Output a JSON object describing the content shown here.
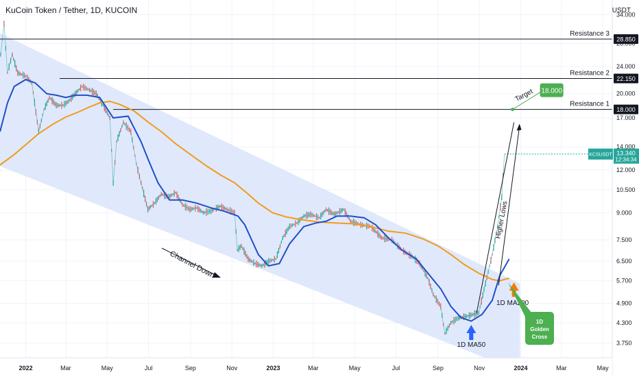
{
  "header": {
    "title": "KuCoin Token / Tether, 1D, KUCOIN",
    "currency": "USDT"
  },
  "colors": {
    "channel": "#dbe4fb",
    "ma50": "#1e4fc8",
    "ma200": "#f09c19",
    "candle_up": "#26a69a",
    "candle_down": "#ef5350",
    "target": "#4caf50",
    "hline": "#131722",
    "grid": "#f0f3fa"
  },
  "chart_data": {
    "type": "line",
    "title": "KuCoin Token / Tether, 1D, KUCOIN",
    "y_scale": "log",
    "ylim": [
      3.4,
      37.5
    ],
    "xlim": [
      "2021-11-24",
      "2024-05-15"
    ],
    "y_ticks": [
      "34.000",
      "28.000",
      "24.000",
      "20.000",
      "17.000",
      "14.000",
      "12.000",
      "10.500",
      "9.000",
      "7.500",
      "6.500",
      "5.700",
      "4.900",
      "4.300",
      "3.750"
    ],
    "x_ticks": [
      {
        "label": "2022",
        "date": "2022-01-01",
        "bold": true
      },
      {
        "label": "Mar",
        "date": "2022-03-01"
      },
      {
        "label": "May",
        "date": "2022-05-01"
      },
      {
        "label": "Jul",
        "date": "2022-07-01"
      },
      {
        "label": "Sep",
        "date": "2022-09-01"
      },
      {
        "label": "Nov",
        "date": "2022-11-01"
      },
      {
        "label": "2023",
        "date": "2023-01-01",
        "bold": true
      },
      {
        "label": "Mar",
        "date": "2023-03-01"
      },
      {
        "label": "May",
        "date": "2023-05-01"
      },
      {
        "label": "Jul",
        "date": "2023-07-01"
      },
      {
        "label": "Sep",
        "date": "2023-09-01"
      },
      {
        "label": "Nov",
        "date": "2023-11-01"
      },
      {
        "label": "2024",
        "date": "2024-01-01",
        "bold": true
      },
      {
        "label": "Mar",
        "date": "2024-03-01"
      },
      {
        "label": "May",
        "date": "2024-05-01"
      }
    ],
    "series": [
      {
        "name": "1D MA50",
        "points": [
          [
            "2021-11-24",
            15.5
          ],
          [
            "2021-12-05",
            18.8
          ],
          [
            "2021-12-15",
            21.0
          ],
          [
            "2022-01-01",
            22.0
          ],
          [
            "2022-01-15",
            21.5
          ],
          [
            "2022-02-01",
            20.0
          ],
          [
            "2022-02-15",
            19.8
          ],
          [
            "2022-03-01",
            19.5
          ],
          [
            "2022-03-15",
            19.8
          ],
          [
            "2022-04-01",
            19.8
          ],
          [
            "2022-04-20",
            19.5
          ],
          [
            "2022-05-10",
            17.0
          ],
          [
            "2022-06-01",
            17.2
          ],
          [
            "2022-06-20",
            14.5
          ],
          [
            "2022-07-01",
            12.8
          ],
          [
            "2022-07-15",
            11.0
          ],
          [
            "2022-08-01",
            9.8
          ],
          [
            "2022-08-20",
            9.8
          ],
          [
            "2022-09-10",
            9.6
          ],
          [
            "2022-10-01",
            9.3
          ],
          [
            "2022-10-20",
            9.1
          ],
          [
            "2022-11-10",
            8.8
          ],
          [
            "2022-11-20",
            8.3
          ],
          [
            "2022-12-10",
            6.8
          ],
          [
            "2022-12-25",
            6.3
          ],
          [
            "2023-01-10",
            6.4
          ],
          [
            "2023-01-25",
            7.3
          ],
          [
            "2023-02-15",
            8.2
          ],
          [
            "2023-03-05",
            8.4
          ],
          [
            "2023-03-20",
            8.5
          ],
          [
            "2023-04-05",
            8.8
          ],
          [
            "2023-04-25",
            8.8
          ],
          [
            "2023-05-15",
            8.7
          ],
          [
            "2023-06-01",
            8.3
          ],
          [
            "2023-06-20",
            7.6
          ],
          [
            "2023-07-10",
            7.0
          ],
          [
            "2023-07-31",
            6.6
          ],
          [
            "2023-08-20",
            5.9
          ],
          [
            "2023-09-05",
            5.4
          ],
          [
            "2023-09-20",
            4.8
          ],
          [
            "2023-10-05",
            4.45
          ],
          [
            "2023-10-20",
            4.35
          ],
          [
            "2023-11-05",
            4.55
          ],
          [
            "2023-11-20",
            5.0
          ],
          [
            "2023-12-01",
            5.9
          ],
          [
            "2023-12-15",
            6.6
          ]
        ]
      },
      {
        "name": "1D MA200",
        "points": [
          [
            "2021-11-24",
            12.4
          ],
          [
            "2021-12-15",
            13.3
          ],
          [
            "2022-01-01",
            14.2
          ],
          [
            "2022-01-20",
            15.3
          ],
          [
            "2022-02-10",
            16.3
          ],
          [
            "2022-03-01",
            17.1
          ],
          [
            "2022-03-20",
            17.7
          ],
          [
            "2022-04-05",
            18.3
          ],
          [
            "2022-04-20",
            18.8
          ],
          [
            "2022-05-05",
            19.0
          ],
          [
            "2022-05-20",
            18.6
          ],
          [
            "2022-06-10",
            17.8
          ],
          [
            "2022-07-01",
            16.5
          ],
          [
            "2022-07-20",
            15.5
          ],
          [
            "2022-08-10",
            14.3
          ],
          [
            "2022-09-01",
            13.3
          ],
          [
            "2022-09-25",
            12.3
          ],
          [
            "2022-10-15",
            11.6
          ],
          [
            "2022-11-05",
            11.0
          ],
          [
            "2022-11-25",
            10.2
          ],
          [
            "2022-12-10",
            9.6
          ],
          [
            "2022-12-31",
            9.0
          ],
          [
            "2023-01-20",
            8.75
          ],
          [
            "2023-02-10",
            8.6
          ],
          [
            "2023-03-10",
            8.45
          ],
          [
            "2023-04-05",
            8.4
          ],
          [
            "2023-05-01",
            8.35
          ],
          [
            "2023-05-25",
            8.2
          ],
          [
            "2023-06-20",
            7.95
          ],
          [
            "2023-07-15",
            7.85
          ],
          [
            "2023-08-10",
            7.55
          ],
          [
            "2023-09-01",
            7.2
          ],
          [
            "2023-09-20",
            6.8
          ],
          [
            "2023-10-10",
            6.35
          ],
          [
            "2023-10-31",
            6.0
          ],
          [
            "2023-11-20",
            5.75
          ],
          [
            "2023-12-01",
            5.7
          ],
          [
            "2023-12-15",
            5.8
          ]
        ]
      },
      {
        "name": "KCSUSDT",
        "points": [
          [
            "2021-11-25",
            26.0
          ],
          [
            "2021-11-30",
            32.0
          ],
          [
            "2021-12-05",
            23.0
          ],
          [
            "2021-12-12",
            26.0
          ],
          [
            "2021-12-20",
            23.0
          ],
          [
            "2022-01-01",
            22.5
          ],
          [
            "2022-01-10",
            21.5
          ],
          [
            "2022-01-20",
            15.5
          ],
          [
            "2022-01-28",
            18.0
          ],
          [
            "2022-02-05",
            19.5
          ],
          [
            "2022-02-15",
            18.5
          ],
          [
            "2022-02-25",
            18.5
          ],
          [
            "2022-03-05",
            19.0
          ],
          [
            "2022-03-15",
            20.0
          ],
          [
            "2022-03-25",
            21.0
          ],
          [
            "2022-04-05",
            20.5
          ],
          [
            "2022-04-15",
            20.0
          ],
          [
            "2022-04-25",
            18.5
          ],
          [
            "2022-05-05",
            17.0
          ],
          [
            "2022-05-10",
            11.0
          ],
          [
            "2022-05-15",
            14.5
          ],
          [
            "2022-05-25",
            16.5
          ],
          [
            "2022-06-05",
            15.5
          ],
          [
            "2022-06-13",
            12.5
          ],
          [
            "2022-06-20",
            11.0
          ],
          [
            "2022-06-30",
            9.2
          ],
          [
            "2022-07-10",
            9.6
          ],
          [
            "2022-07-20",
            10.2
          ],
          [
            "2022-07-31",
            10.0
          ],
          [
            "2022-08-10",
            10.3
          ],
          [
            "2022-08-20",
            9.5
          ],
          [
            "2022-08-31",
            9.2
          ],
          [
            "2022-09-10",
            9.3
          ],
          [
            "2022-09-20",
            9.0
          ],
          [
            "2022-10-01",
            9.1
          ],
          [
            "2022-10-15",
            9.4
          ],
          [
            "2022-10-25",
            9.2
          ],
          [
            "2022-11-05",
            9.0
          ],
          [
            "2022-11-09",
            7.0
          ],
          [
            "2022-11-15",
            7.2
          ],
          [
            "2022-11-25",
            6.6
          ],
          [
            "2022-12-05",
            6.4
          ],
          [
            "2022-12-15",
            6.3
          ],
          [
            "2022-12-25",
            6.5
          ],
          [
            "2023-01-05",
            6.6
          ],
          [
            "2023-01-15",
            7.6
          ],
          [
            "2023-01-25",
            8.2
          ],
          [
            "2023-02-05",
            8.4
          ],
          [
            "2023-02-15",
            8.8
          ],
          [
            "2023-02-25",
            8.9
          ],
          [
            "2023-03-10",
            8.7
          ],
          [
            "2023-03-20",
            9.2
          ],
          [
            "2023-04-01",
            8.9
          ],
          [
            "2023-04-15",
            9.2
          ],
          [
            "2023-04-25",
            8.5
          ],
          [
            "2023-05-10",
            8.3
          ],
          [
            "2023-05-25",
            8.2
          ],
          [
            "2023-06-10",
            7.6
          ],
          [
            "2023-06-25",
            7.5
          ],
          [
            "2023-07-10",
            7.0
          ],
          [
            "2023-07-25",
            6.7
          ],
          [
            "2023-08-05",
            6.4
          ],
          [
            "2023-08-17",
            5.8
          ],
          [
            "2023-08-25",
            5.2
          ],
          [
            "2023-09-05",
            4.8
          ],
          [
            "2023-09-11",
            4.0
          ],
          [
            "2023-09-20",
            4.3
          ],
          [
            "2023-10-01",
            4.45
          ],
          [
            "2023-10-15",
            4.5
          ],
          [
            "2023-10-31",
            4.6
          ],
          [
            "2023-11-10",
            5.6
          ],
          [
            "2023-11-20",
            6.8
          ],
          [
            "2023-11-28",
            8.2
          ],
          [
            "2023-12-04",
            10.0
          ],
          [
            "2023-12-08",
            13.34
          ]
        ]
      }
    ],
    "channel": {
      "upper": [
        [
          "2021-11-24",
          30.0
        ],
        [
          "2023-12-31",
          5.6
        ]
      ],
      "lower": [
        [
          "2021-11-24",
          12.3
        ],
        [
          "2023-12-31",
          3.1
        ]
      ]
    },
    "levels": [
      {
        "name": "Resistance 3",
        "value": 28.85,
        "label": "28.850",
        "start": "2021-11-24"
      },
      {
        "name": "Resistance 2",
        "value": 22.15,
        "label": "22.150",
        "start": "2022-02-20"
      },
      {
        "name": "Resistance 1",
        "value": 18.0,
        "label": "18.000",
        "start": "2022-05-10"
      }
    ],
    "higher_lows": [
      [
        "2023-10-28",
        4.6
      ],
      [
        "2023-12-22",
        16.5
      ]
    ],
    "target": {
      "label": "18.000",
      "value": 18.0,
      "date": "2023-12-20",
      "title": "Target"
    },
    "last_price": {
      "symbol": "KCSUSDT",
      "value": "13.340",
      "time": "12:34:34"
    },
    "annotations": [
      {
        "text": "Channel Down"
      },
      {
        "text": "Higher Lows"
      },
      {
        "text": "1D MA50"
      },
      {
        "text": "1D MA200"
      },
      {
        "text": "1D Golden Cross"
      }
    ]
  }
}
